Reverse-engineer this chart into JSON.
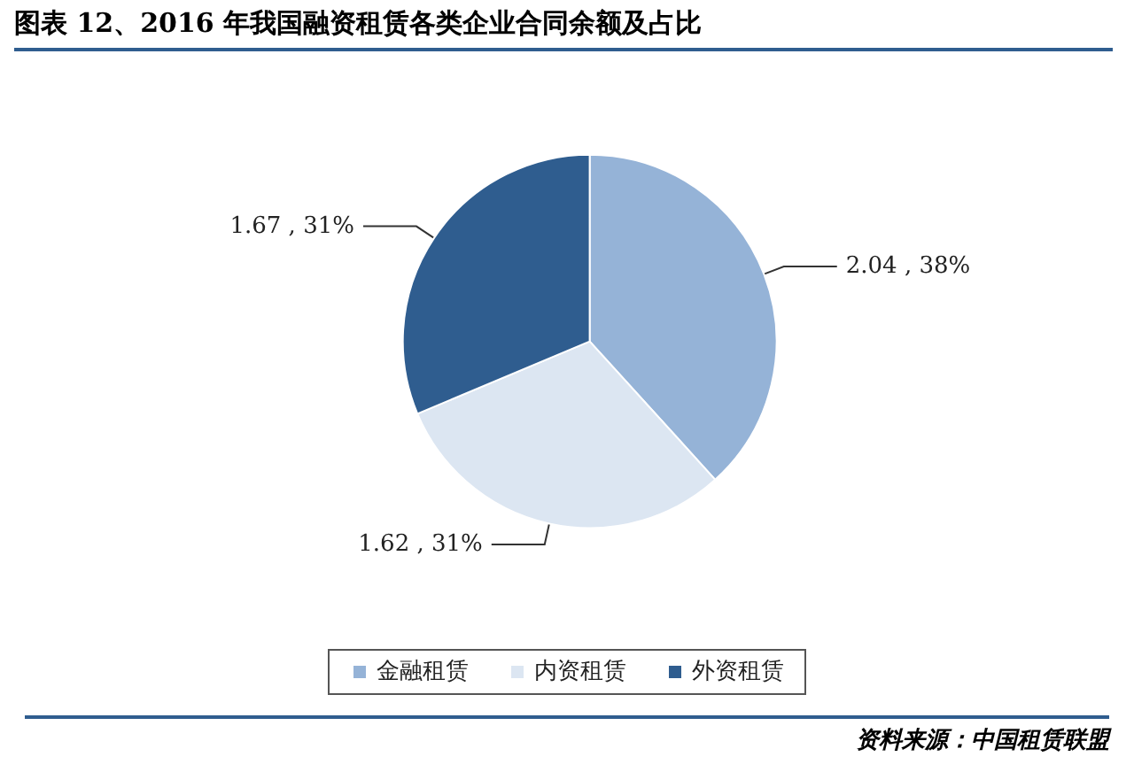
{
  "chart_data": {
    "type": "pie",
    "title": "图表 12、2016 年我国融资租赁各类企业合同余额及占比",
    "categories": [
      "金融租赁",
      "内资租赁",
      "外资租赁"
    ],
    "values": [
      2.04,
      1.62,
      1.67
    ],
    "colors": [
      "#95b3d7",
      "#dce6f2",
      "#2f5d8f"
    ],
    "value_labels": [
      "2.04 , 38%",
      "1.62 , 31%",
      "1.67 , 31%"
    ],
    "legend": "bottom",
    "annotations": [
      "资料来源：中国租赁联盟"
    ]
  }
}
